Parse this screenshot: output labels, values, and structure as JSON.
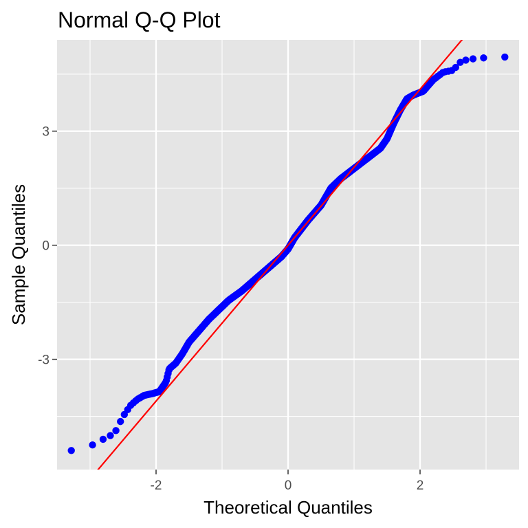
{
  "chart_data": {
    "type": "scatter",
    "title": "Normal Q-Q Plot",
    "xlabel": "Theoretical Quantiles",
    "ylabel": "Sample Quantiles",
    "xlim": [
      -3.5,
      3.5
    ],
    "ylim": [
      -5.9,
      5.4
    ],
    "x_ticks": [
      -2,
      0,
      2
    ],
    "x_tick_labels": [
      "-2",
      "0",
      "2"
    ],
    "y_ticks": [
      -3,
      0,
      3
    ],
    "y_tick_labels": [
      "-3",
      "0",
      "3"
    ],
    "grid": true,
    "background": "#e5e5e5",
    "grid_color": "#ffffff",
    "point_color": "#0000ff",
    "line_color": "#ff0000",
    "reference_line": {
      "intercept": 0.0,
      "slope": 2.05
    },
    "profile": {
      "x": [
        -3.12,
        -2.8,
        -2.63,
        -2.5,
        -2.38,
        -2.28,
        -2.18,
        -2.05,
        -1.95,
        -1.85,
        -1.8,
        -1.7,
        -1.6,
        -1.5,
        -1.35,
        -1.2,
        -1.05,
        -0.9,
        -0.7,
        -0.5,
        -0.3,
        -0.1,
        0.0,
        0.1,
        0.3,
        0.5,
        0.65,
        0.8,
        0.95,
        1.1,
        1.25,
        1.4,
        1.5,
        1.6,
        1.7,
        1.8,
        1.9,
        2.05,
        2.2,
        2.35,
        2.5,
        2.63,
        2.8,
        3.12
      ],
      "y": [
        -5.4,
        -5.1,
        -4.95,
        -4.5,
        -4.2,
        -4.05,
        -3.95,
        -3.9,
        -3.85,
        -3.6,
        -3.25,
        -3.1,
        -2.85,
        -2.55,
        -2.25,
        -1.95,
        -1.7,
        -1.45,
        -1.2,
        -0.9,
        -0.6,
        -0.3,
        -0.1,
        0.2,
        0.65,
        1.05,
        1.5,
        1.75,
        1.95,
        2.15,
        2.35,
        2.55,
        2.8,
        3.2,
        3.55,
        3.85,
        3.95,
        4.05,
        4.35,
        4.55,
        4.6,
        4.85,
        4.9,
        4.95
      ]
    },
    "n_points": 1000
  }
}
